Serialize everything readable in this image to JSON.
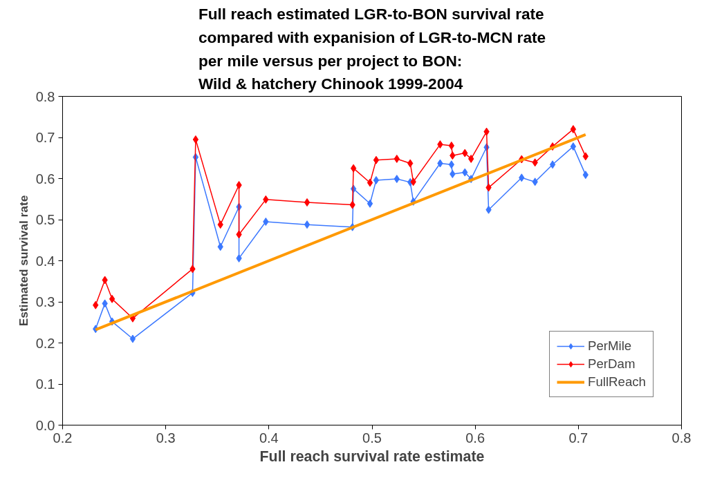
{
  "chart_data": {
    "type": "line",
    "title": "Full reach estimated LGR-to-BON survival rate\ncompared with expanision of LGR-to-MCN rate\nper mile versus per project to BON:\nWild & hatchery Chinook 1999-2004",
    "xlabel": "Full reach survival rate estimate",
    "ylabel": "Estimated survival rate",
    "x": [
      0.232,
      0.241,
      0.248,
      0.268,
      0.326,
      0.329,
      0.353,
      0.371,
      0.371,
      0.397,
      0.437,
      0.481,
      0.482,
      0.498,
      0.504,
      0.524,
      0.537,
      0.54,
      0.566,
      0.577,
      0.578,
      0.59,
      0.596,
      0.611,
      0.613,
      0.645,
      0.658,
      0.675,
      0.695,
      0.707
    ],
    "series": [
      {
        "name": "PerMile",
        "color": "#3b78ff",
        "marker": "diamond",
        "values": [
          0.234,
          0.296,
          0.252,
          0.21,
          0.322,
          0.652,
          0.434,
          0.531,
          0.406,
          0.495,
          0.488,
          0.482,
          0.575,
          0.539,
          0.596,
          0.599,
          0.591,
          0.544,
          0.637,
          0.634,
          0.611,
          0.615,
          0.599,
          0.676,
          0.524,
          0.602,
          0.592,
          0.634,
          0.678,
          0.609
        ]
      },
      {
        "name": "PerDam",
        "color": "#ff0000",
        "marker": "diamond",
        "values": [
          0.292,
          0.353,
          0.307,
          0.26,
          0.38,
          0.695,
          0.488,
          0.584,
          0.464,
          0.549,
          0.542,
          0.536,
          0.625,
          0.59,
          0.645,
          0.648,
          0.637,
          0.592,
          0.683,
          0.68,
          0.656,
          0.662,
          0.648,
          0.714,
          0.578,
          0.647,
          0.639,
          0.678,
          0.72,
          0.654
        ]
      },
      {
        "name": "FullReach",
        "color": "#ff9900",
        "marker": "none",
        "x": [
          0.232,
          0.707
        ],
        "values": [
          0.232,
          0.707
        ]
      }
    ],
    "xlim": [
      0.2,
      0.8
    ],
    "xticks": [
      0.2,
      0.3,
      0.4,
      0.5,
      0.6,
      0.7,
      0.8
    ],
    "ylim": [
      0.0,
      0.8
    ],
    "yticks": [
      {
        "value": 0.0,
        "label": "0.0"
      },
      0.1,
      0.2,
      0.3,
      0.4,
      0.5,
      0.6,
      0.7,
      0.8
    ],
    "legend": "bottom right",
    "grid": false
  }
}
